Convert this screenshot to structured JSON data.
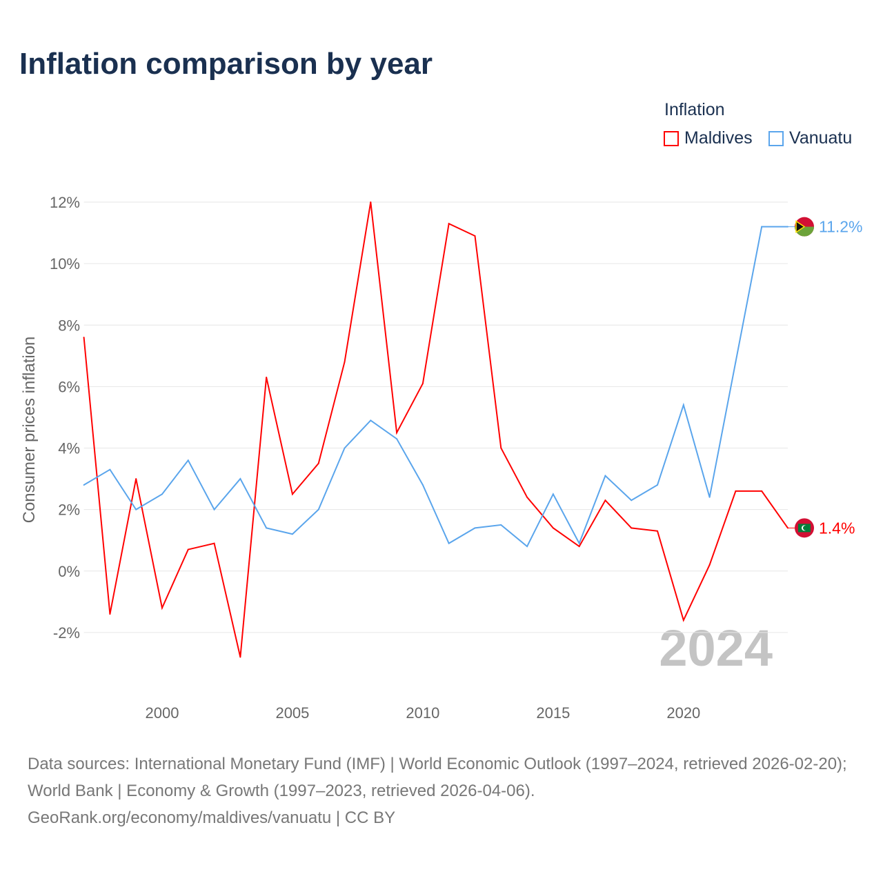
{
  "chart_data": {
    "type": "line",
    "title": "Inflation comparison by year",
    "ylabel": "Consumer prices inflation",
    "xlabel": "",
    "legend_title": "Inflation",
    "legend_position": "top-right",
    "year_watermark": "2024",
    "x": [
      1997,
      1998,
      1999,
      2000,
      2001,
      2002,
      2003,
      2004,
      2005,
      2006,
      2007,
      2008,
      2009,
      2010,
      2011,
      2012,
      2013,
      2014,
      2015,
      2016,
      2017,
      2018,
      2019,
      2020,
      2021,
      2022,
      2023,
      2024
    ],
    "xlim": [
      1997,
      2024
    ],
    "ylim": [
      -4,
      12
    ],
    "x_ticks": [
      2000,
      2005,
      2010,
      2015,
      2020
    ],
    "x_tick_labels": [
      "2000",
      "2005",
      "2010",
      "2015",
      "2020"
    ],
    "y_ticks": [
      -2,
      0,
      2,
      4,
      6,
      8,
      10,
      12
    ],
    "y_tick_labels": [
      "-2%",
      "0%",
      "2%",
      "4%",
      "6%",
      "8%",
      "10%",
      "12%"
    ],
    "grid": true,
    "series": [
      {
        "name": "Maldives",
        "color": "#ff0000",
        "end_label": "1.4%",
        "values": [
          7.6,
          -1.4,
          3.0,
          -1.2,
          0.7,
          0.9,
          -2.8,
          6.3,
          2.5,
          3.5,
          6.8,
          12.0,
          4.5,
          6.1,
          11.3,
          10.9,
          4.0,
          2.4,
          1.4,
          0.8,
          2.3,
          1.4,
          1.3,
          -1.6,
          0.2,
          2.6,
          2.6,
          1.4
        ]
      },
      {
        "name": "Vanuatu",
        "color": "#5aa5ec",
        "end_label": "11.2%",
        "values": [
          2.8,
          3.3,
          2.0,
          2.5,
          3.6,
          2.0,
          3.0,
          1.4,
          1.2,
          2.0,
          4.0,
          4.9,
          4.3,
          2.8,
          0.9,
          1.4,
          1.5,
          0.8,
          2.5,
          0.9,
          3.1,
          2.3,
          2.8,
          5.4,
          2.4,
          6.8,
          11.2,
          11.2
        ]
      }
    ]
  },
  "footer": {
    "sources": "Data sources: International Monetary Fund (IMF) | World Economic Outlook (1997–2024, retrieved 2026-02-20); World Bank | Economy & Growth (1997–2023, retrieved 2026-04-06).",
    "credit": "GeoRank.org/economy/maldives/vanuatu | CC BY"
  }
}
